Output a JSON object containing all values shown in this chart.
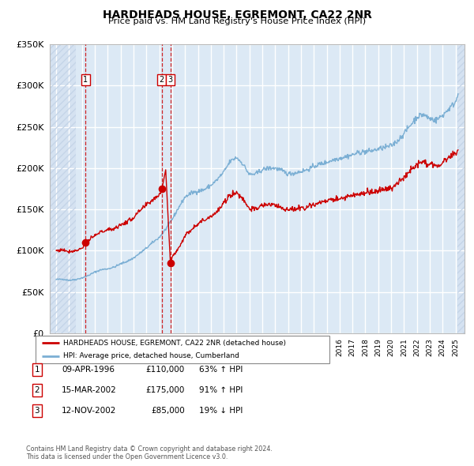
{
  "title": "HARDHEADS HOUSE, EGREMONT, CA22 2NR",
  "subtitle": "Price paid vs. HM Land Registry's House Price Index (HPI)",
  "legend_line1": "HARDHEADS HOUSE, EGREMONT, CA22 2NR (detached house)",
  "legend_line2": "HPI: Average price, detached house, Cumberland",
  "footer1": "Contains HM Land Registry data © Crown copyright and database right 2024.",
  "footer2": "This data is licensed under the Open Government Licence v3.0.",
  "transactions": [
    {
      "num": 1,
      "date": "09-APR-1996",
      "price": 110000,
      "pct": "63%",
      "dir": "↑",
      "year": 1996.27
    },
    {
      "num": 2,
      "date": "15-MAR-2002",
      "price": 175000,
      "pct": "91%",
      "dir": "↑",
      "year": 2002.2
    },
    {
      "num": 3,
      "date": "12-NOV-2002",
      "price": 85000,
      "pct": "19%",
      "dir": "↓",
      "year": 2002.87
    }
  ],
  "hpi_color": "#7bafd4",
  "price_color": "#cc0000",
  "dot_color": "#cc0000",
  "vline_color": "#cc0000",
  "bg_color": "#dce9f5",
  "hatch_color": "#c5d5e8",
  "grid_color": "#ffffff",
  "border_color": "#aaaaaa",
  "ylim": [
    0,
    350000
  ],
  "yticks": [
    0,
    50000,
    100000,
    150000,
    200000,
    250000,
    300000,
    350000
  ],
  "xlim_start": 1993.5,
  "xlim_end": 2025.7,
  "hatch_left_end": 1995.5,
  "hatch_right_start": 2025.17
}
